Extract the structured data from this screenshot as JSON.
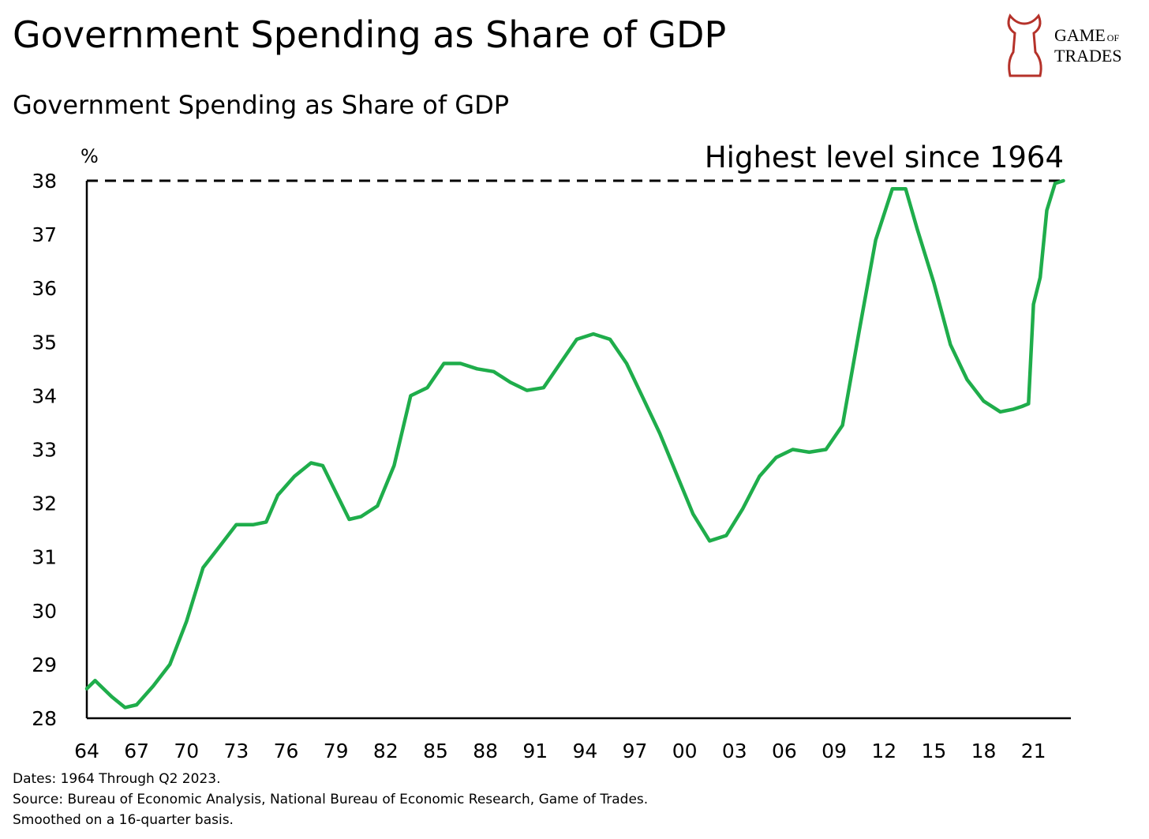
{
  "chart_data": {
    "type": "line",
    "title": "Government Spending as Share of GDP",
    "subtitle": "Government Spending as Share of GDP",
    "y_label": "%",
    "logo": {
      "line1": "GAME",
      "line1_small": "OF",
      "line2": "TRADES"
    },
    "annotation": {
      "text": "Highest level since 1964",
      "value": 38
    },
    "notes": [
      "Dates: 1964 Through Q2 2023.",
      "Source: Bureau of Economic Analysis, National Bureau of Economic Research, Game of Trades.",
      "Smoothed on a 16-quarter basis."
    ],
    "x": [
      1964,
      1964.5,
      1965.5,
      1966.3,
      1967,
      1968,
      1969,
      1970,
      1971,
      1972,
      1973,
      1974,
      1974.8,
      1975.5,
      1976.5,
      1977.5,
      1978.2,
      1979,
      1979.8,
      1980.5,
      1981.5,
      1982.5,
      1983.5,
      1984.5,
      1985.5,
      1986.5,
      1987.5,
      1988.5,
      1989.5,
      1990.5,
      1991.5,
      1992.5,
      1993.5,
      1994.5,
      1995.5,
      1996.5,
      1997.5,
      1998.5,
      1999.5,
      2000.5,
      2001.5,
      2002.5,
      2003.5,
      2004.5,
      2005.5,
      2006.5,
      2007.5,
      2008.5,
      2009.5,
      2010.5,
      2011.5,
      2012.5,
      2013.3,
      2014,
      2015,
      2016,
      2017,
      2018,
      2019,
      2019.8,
      2020.3,
      2020.7,
      2021,
      2021.4,
      2021.8,
      2022.3,
      2022.8
    ],
    "series": [
      {
        "name": "Government Spending as Share of GDP",
        "color": "#1fad4b",
        "values": [
          28.55,
          28.7,
          28.4,
          28.2,
          28.25,
          28.6,
          29.0,
          29.8,
          30.8,
          31.2,
          31.6,
          31.6,
          31.65,
          32.15,
          32.5,
          32.75,
          32.7,
          32.2,
          31.7,
          31.75,
          31.95,
          32.7,
          34.0,
          34.15,
          34.6,
          34.6,
          34.5,
          34.45,
          34.25,
          34.1,
          34.15,
          34.6,
          35.05,
          35.15,
          35.05,
          34.6,
          33.95,
          33.3,
          32.55,
          31.8,
          31.3,
          31.4,
          31.9,
          32.5,
          32.85,
          33.0,
          32.95,
          33.0,
          33.45,
          35.2,
          36.9,
          37.85,
          37.85,
          37.1,
          36.1,
          34.95,
          34.3,
          33.9,
          33.7,
          33.75,
          33.8,
          33.85,
          35.7,
          36.2,
          37.45,
          37.95,
          38.0
        ]
      }
    ],
    "xlim": [
      1964,
      2023.25
    ],
    "ylim": [
      28,
      38
    ],
    "xticks": [
      {
        "value": 1964,
        "label": "64"
      },
      {
        "value": 1967,
        "label": "67"
      },
      {
        "value": 1970,
        "label": "70"
      },
      {
        "value": 1973,
        "label": "73"
      },
      {
        "value": 1976,
        "label": "76"
      },
      {
        "value": 1979,
        "label": "79"
      },
      {
        "value": 1982,
        "label": "82"
      },
      {
        "value": 1985,
        "label": "85"
      },
      {
        "value": 1988,
        "label": "88"
      },
      {
        "value": 1991,
        "label": "91"
      },
      {
        "value": 1994,
        "label": "94"
      },
      {
        "value": 1997,
        "label": "97"
      },
      {
        "value": 2000,
        "label": "00"
      },
      {
        "value": 2003,
        "label": "03"
      },
      {
        "value": 2006,
        "label": "06"
      },
      {
        "value": 2009,
        "label": "09"
      },
      {
        "value": 2012,
        "label": "12"
      },
      {
        "value": 2015,
        "label": "15"
      },
      {
        "value": 2018,
        "label": "18"
      },
      {
        "value": 2021,
        "label": "21"
      }
    ],
    "yticks": [
      28,
      29,
      30,
      31,
      32,
      33,
      34,
      35,
      36,
      37,
      38
    ],
    "grid": false
  }
}
